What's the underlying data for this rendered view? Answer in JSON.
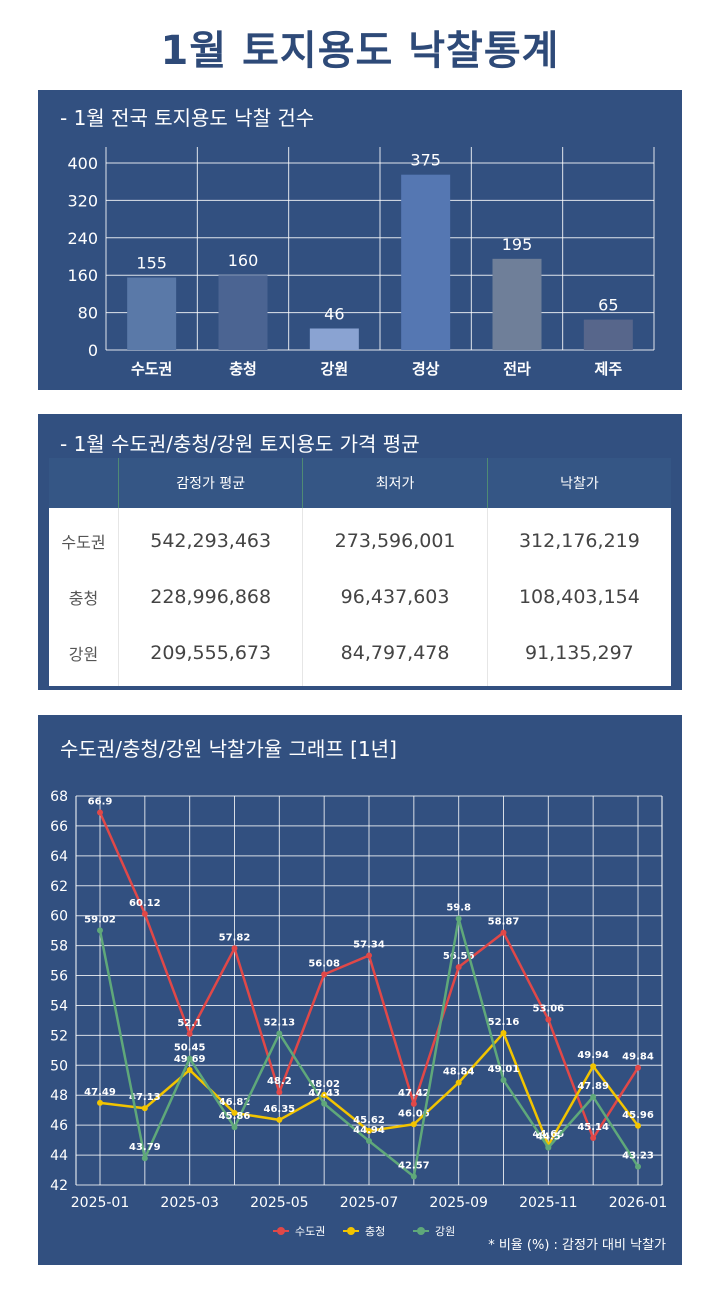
{
  "page_title": "1월 토지용도 낙찰통계",
  "bar_section": {
    "title": "- 1월 전국 토지용도 낙찰 건수"
  },
  "table_section": {
    "title": "- 1월 수도권/충청/강원 토지용도 가격 평균",
    "headers": [
      "",
      "감정가 평균",
      "최저가",
      "낙찰가"
    ],
    "rows": [
      [
        "수도권",
        "542,293,463",
        "273,596,001",
        "312,176,219"
      ],
      [
        "충청",
        "228,996,868",
        "96,437,603",
        "108,403,154"
      ],
      [
        "강원",
        "209,555,673",
        "84,797,478",
        "91,135,297"
      ]
    ]
  },
  "line_section": {
    "title": "수도권/충청/강원 낙찰가율 그래프 [1년]",
    "note": "* 비율 (%) : 감정가 대비 낙찰가"
  },
  "chart_data": [
    {
      "type": "bar",
      "categories": [
        "수도권",
        "충청",
        "강원",
        "경상",
        "전라",
        "제주"
      ],
      "values": [
        155,
        160,
        46,
        375,
        195,
        65
      ],
      "ylim": [
        0,
        400
      ],
      "yticks": [
        0,
        80,
        160,
        240,
        320,
        400
      ],
      "bar_colors": [
        "#5a79a8",
        "#4b6492",
        "#8aa3d2",
        "#5577b2",
        "#6f7f99",
        "#57668b"
      ],
      "data_labels": true,
      "grid": true
    },
    {
      "type": "line",
      "x": [
        "2025-01",
        "2025-02",
        "2025-03",
        "2025-04",
        "2025-05",
        "2025-06",
        "2025-07",
        "2025-08",
        "2025-09",
        "2025-10",
        "2025-11",
        "2025-12",
        "2026-01"
      ],
      "xtick_labels": [
        "2025-01",
        "2025-03",
        "2025-05",
        "2025-07",
        "2025-09",
        "2025-11",
        "2026-01"
      ],
      "ylim": [
        42,
        68
      ],
      "yticks": [
        42,
        44,
        46,
        48,
        50,
        52,
        54,
        56,
        58,
        60,
        62,
        64,
        66,
        68
      ],
      "grid": true,
      "legend_position": "bottom",
      "series": [
        {
          "name": "수도권",
          "color": "#e04848",
          "values": [
            66.9,
            60.12,
            52.1,
            57.82,
            48.2,
            56.08,
            57.34,
            47.42,
            56.56,
            58.87,
            53.06,
            45.14,
            49.84
          ]
        },
        {
          "name": "충청",
          "color": "#f2c400",
          "values": [
            47.49,
            47.13,
            49.69,
            46.82,
            46.35,
            48.02,
            45.62,
            46.06,
            48.84,
            52.16,
            44.66,
            49.94,
            45.96
          ]
        },
        {
          "name": "강원",
          "color": "#5fa87a",
          "values": [
            59.02,
            43.79,
            50.45,
            45.86,
            52.13,
            47.43,
            44.94,
            42.57,
            59.8,
            49.01,
            44.5,
            47.89,
            43.23
          ]
        }
      ]
    }
  ]
}
